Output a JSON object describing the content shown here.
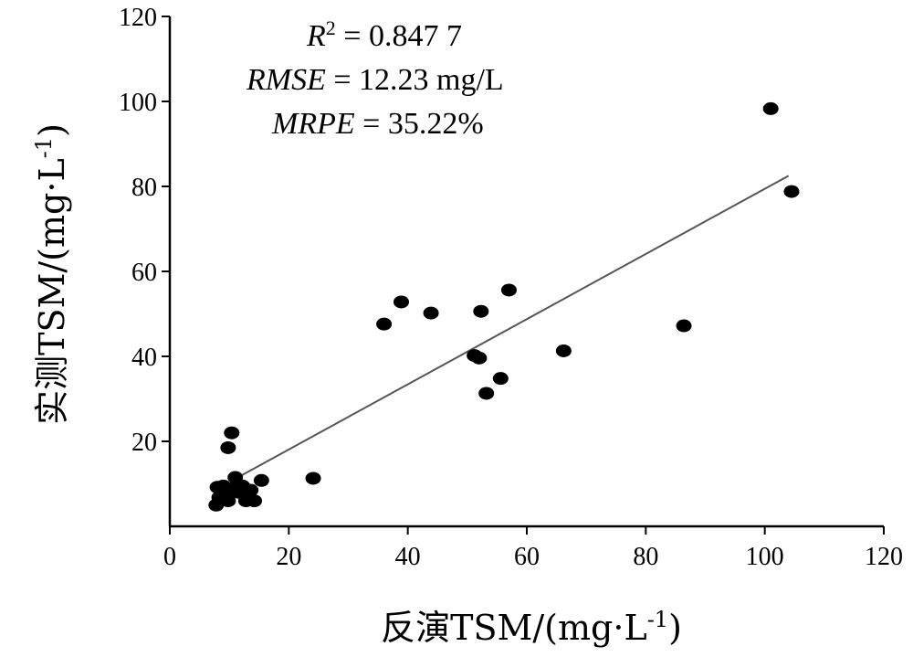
{
  "chart_data": {
    "type": "scatter",
    "xlabel_main": "反演TSM/(mg·L",
    "ylabel_main": "实测TSM/(mg·L",
    "label_exponent": "-1",
    "label_close": ")",
    "xlim": [
      0,
      120
    ],
    "ylim": [
      0,
      120
    ],
    "x_ticks": [
      0,
      20,
      40,
      60,
      80,
      100,
      120
    ],
    "y_ticks": [
      20,
      40,
      60,
      80,
      100,
      120
    ],
    "grid": false,
    "stats": {
      "r2_symbol": "R",
      "r2_exponent": "2",
      "r2_value": " = 0.847 7",
      "rmse_symbol": "RMSE",
      "rmse_value": " = 12.23 mg/L",
      "mrpe_symbol": "MRPE",
      "mrpe_value": " = 35.22%"
    },
    "fit_line": {
      "x": [
        10.5,
        104
      ],
      "y": [
        10.8,
        82.5
      ]
    },
    "points": [
      {
        "x": 7.8,
        "y": 5.0
      },
      {
        "x": 8.0,
        "y": 9.2
      },
      {
        "x": 8.3,
        "y": 6.8
      },
      {
        "x": 8.7,
        "y": 8.3
      },
      {
        "x": 9.0,
        "y": 9.5
      },
      {
        "x": 9.4,
        "y": 7.3
      },
      {
        "x": 9.8,
        "y": 6.0
      },
      {
        "x": 10.2,
        "y": 8.8
      },
      {
        "x": 9.8,
        "y": 18.5
      },
      {
        "x": 10.4,
        "y": 22.0
      },
      {
        "x": 11.0,
        "y": 11.5
      },
      {
        "x": 11.6,
        "y": 8.0
      },
      {
        "x": 12.2,
        "y": 9.5
      },
      {
        "x": 12.8,
        "y": 6.0
      },
      {
        "x": 13.6,
        "y": 8.5
      },
      {
        "x": 14.2,
        "y": 6.0
      },
      {
        "x": 15.4,
        "y": 10.8
      },
      {
        "x": 24.1,
        "y": 11.3
      },
      {
        "x": 36.0,
        "y": 47.6
      },
      {
        "x": 38.9,
        "y": 52.8
      },
      {
        "x": 43.9,
        "y": 50.2
      },
      {
        "x": 51.2,
        "y": 40.2
      },
      {
        "x": 52.0,
        "y": 39.6
      },
      {
        "x": 52.3,
        "y": 50.6
      },
      {
        "x": 53.2,
        "y": 31.3
      },
      {
        "x": 55.6,
        "y": 34.8
      },
      {
        "x": 57.0,
        "y": 55.6
      },
      {
        "x": 66.2,
        "y": 41.3
      },
      {
        "x": 86.4,
        "y": 47.2
      },
      {
        "x": 101.0,
        "y": 98.3
      },
      {
        "x": 104.5,
        "y": 78.8
      }
    ]
  }
}
